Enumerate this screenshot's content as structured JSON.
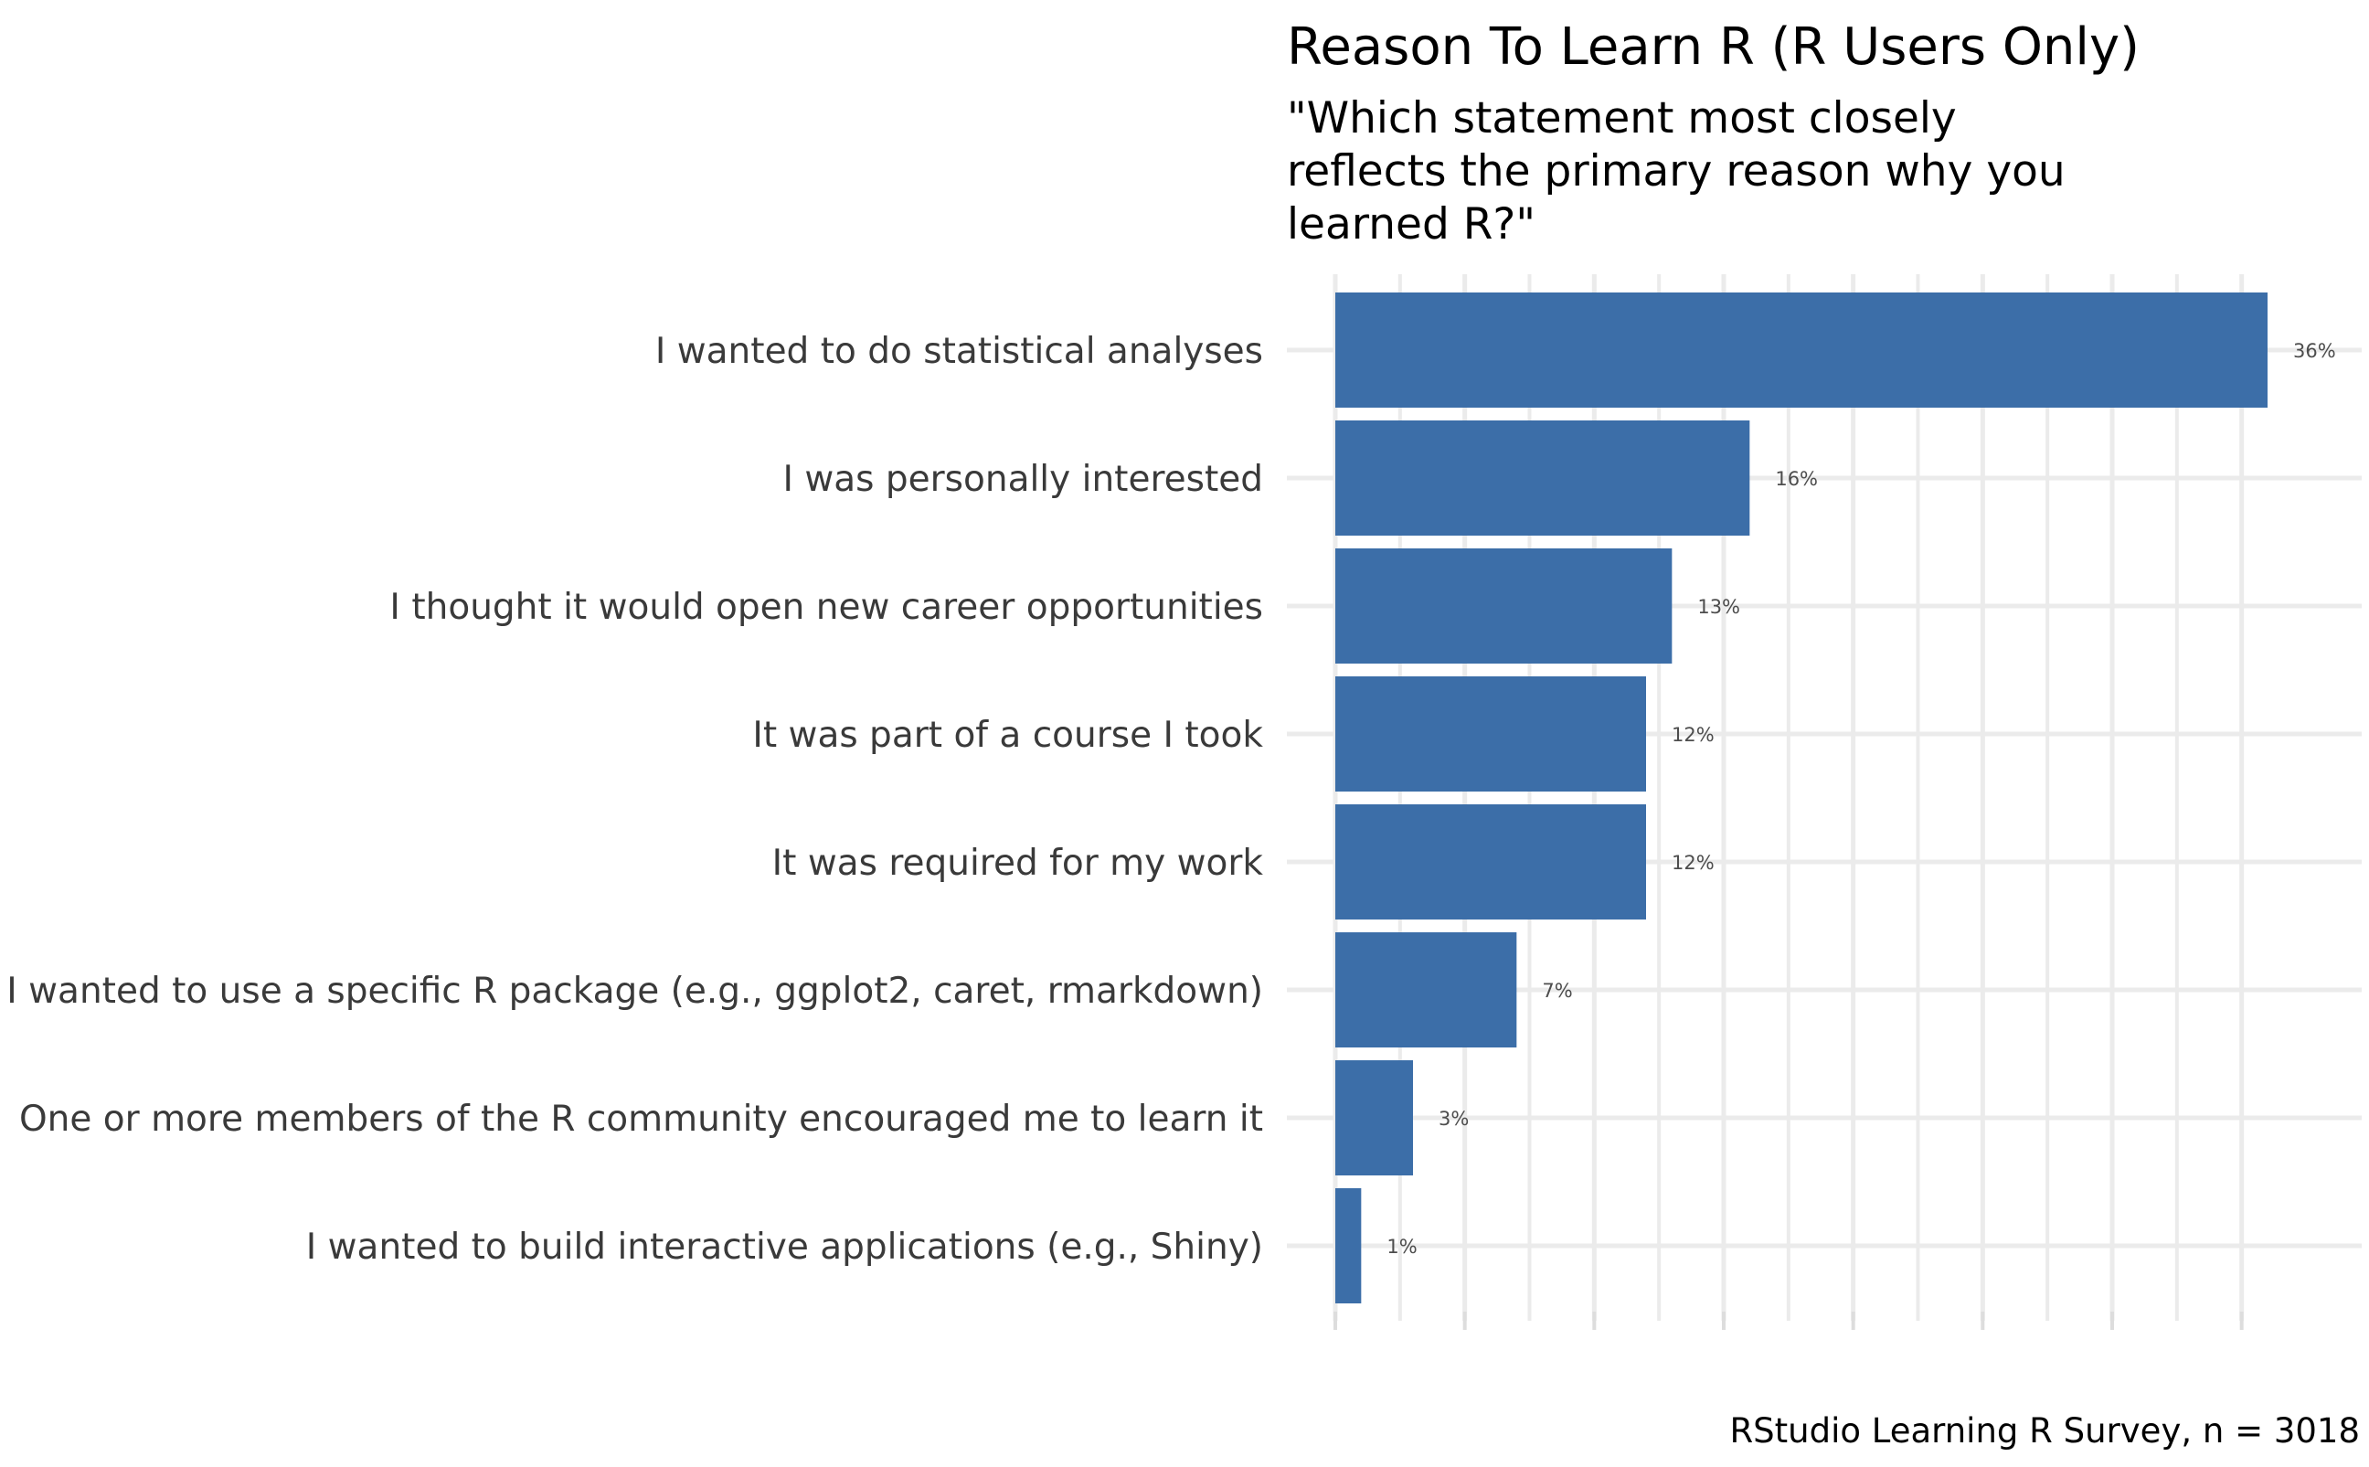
{
  "chart_data": {
    "type": "bar",
    "orientation": "horizontal",
    "title": "Reason To Learn R (R Users Only)",
    "subtitle_lines": [
      "\"Which statement most closely",
      "reflects the primary reason why you",
      "learned R?\""
    ],
    "caption": "RStudio Learning R Survey, n = 3018",
    "categories": [
      "I wanted to do statistical analyses",
      "I was personally interested",
      "I thought it would open new career opportunities",
      "It was part of a course I took",
      "It was required for my work",
      "I wanted to use a specific R package (e.g., ggplot2, caret, rmarkdown)",
      "One or more members of the R community encouraged me to learn it",
      "I wanted to build interactive applications (e.g., Shiny)"
    ],
    "values": [
      0.36,
      0.16,
      0.13,
      0.12,
      0.12,
      0.07,
      0.03,
      0.01
    ],
    "value_labels": [
      "36%",
      "16%",
      "13%",
      "12%",
      "12%",
      "7%",
      "3%",
      "1%"
    ],
    "bar_color": "#3c6ea8",
    "xlim": [
      0,
      0.37
    ],
    "xlabel": "",
    "ylabel": "",
    "grid": true,
    "legend": "none"
  }
}
